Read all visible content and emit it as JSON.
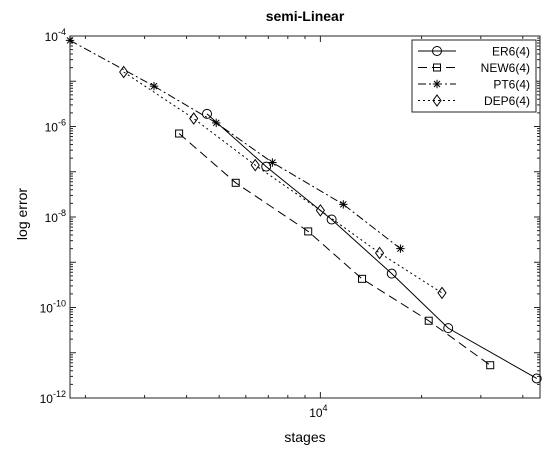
{
  "chart_data": {
    "type": "line",
    "title": "semi-Linear",
    "xlabel": "stages",
    "ylabel": "log error",
    "x_scale": "log",
    "y_scale": "log",
    "xlim": [
      1800,
      45000
    ],
    "ylim": [
      1e-12,
      0.0001
    ],
    "x_ticks": [
      {
        "value": 10000,
        "base": "10",
        "exp": "4"
      }
    ],
    "y_ticks": [
      {
        "value": 0.0001,
        "base": "10",
        "exp": "-4"
      },
      {
        "value": 1e-06,
        "base": "10",
        "exp": "-6"
      },
      {
        "value": 1e-08,
        "base": "10",
        "exp": "-8"
      },
      {
        "value": 1e-10,
        "base": "10",
        "exp": "-10"
      },
      {
        "value": 1e-12,
        "base": "10",
        "exp": "-12"
      }
    ],
    "grid": false,
    "legend_position": "top-right",
    "series": [
      {
        "name": "ER6(4)",
        "marker": "circle",
        "dash": "",
        "x": [
          4600,
          6900,
          10800,
          16300,
          24000,
          44000
        ],
        "y": [
          1.9e-06,
          1.3e-07,
          8.8e-09,
          5.6e-10,
          3.5e-11,
          2.7e-12
        ]
      },
      {
        "name": "NEW6(4)",
        "marker": "square",
        "dash": "9,5",
        "x": [
          3800,
          5600,
          9200,
          13300,
          21000,
          32000
        ],
        "y": [
          7e-07,
          5.7e-08,
          4.8e-09,
          4.3e-10,
          5.1e-11,
          5.3e-12
        ]
      },
      {
        "name": "PT6(4)",
        "marker": "asterisk",
        "dash": "8,3,2,3",
        "x": [
          1800,
          3200,
          4900,
          7200,
          11700,
          17300
        ],
        "y": [
          8e-05,
          7.8e-06,
          1.2e-06,
          1.6e-07,
          1.9e-08,
          2e-09
        ]
      },
      {
        "name": "DEP6(4)",
        "marker": "diamond",
        "dash": "2,3",
        "x": [
          2600,
          4200,
          6400,
          10000,
          15000,
          23000
        ],
        "y": [
          1.6e-05,
          1.5e-06,
          1.4e-07,
          1.4e-08,
          1.6e-09,
          2.1e-10
        ]
      }
    ]
  }
}
